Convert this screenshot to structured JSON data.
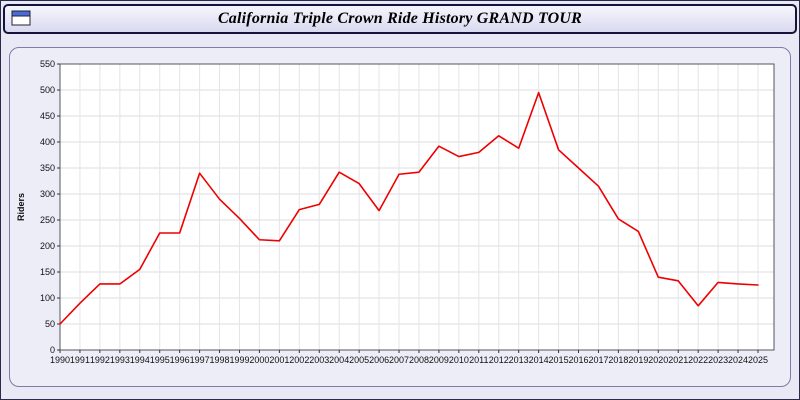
{
  "header": {
    "title": "California Triple Crown Ride History GRAND TOUR"
  },
  "chart_data": {
    "type": "line",
    "title": "California Triple Crown Ride History GRAND TOUR",
    "xlabel": "",
    "ylabel": "Riders",
    "ylim": [
      0,
      550
    ],
    "ytick_step": 50,
    "grid": true,
    "legend": "none",
    "line_color": "#ee0000",
    "years": [
      1990,
      1991,
      1992,
      1993,
      1994,
      1995,
      1996,
      1997,
      1998,
      1999,
      2000,
      2001,
      2002,
      2003,
      2004,
      2005,
      2006,
      2007,
      2008,
      2009,
      2010,
      2011,
      2012,
      2013,
      2014,
      2015,
      2016,
      2017,
      2018,
      2019,
      2020,
      2021,
      2022,
      2023,
      2024,
      2025
    ],
    "values": [
      50,
      90,
      127,
      127,
      155,
      225,
      225,
      340,
      290,
      253,
      212,
      210,
      270,
      280,
      342,
      320,
      268,
      338,
      342,
      392,
      372,
      380,
      412,
      388,
      495,
      385,
      350,
      315,
      252,
      228,
      140,
      133,
      85,
      130,
      127,
      125
    ]
  }
}
